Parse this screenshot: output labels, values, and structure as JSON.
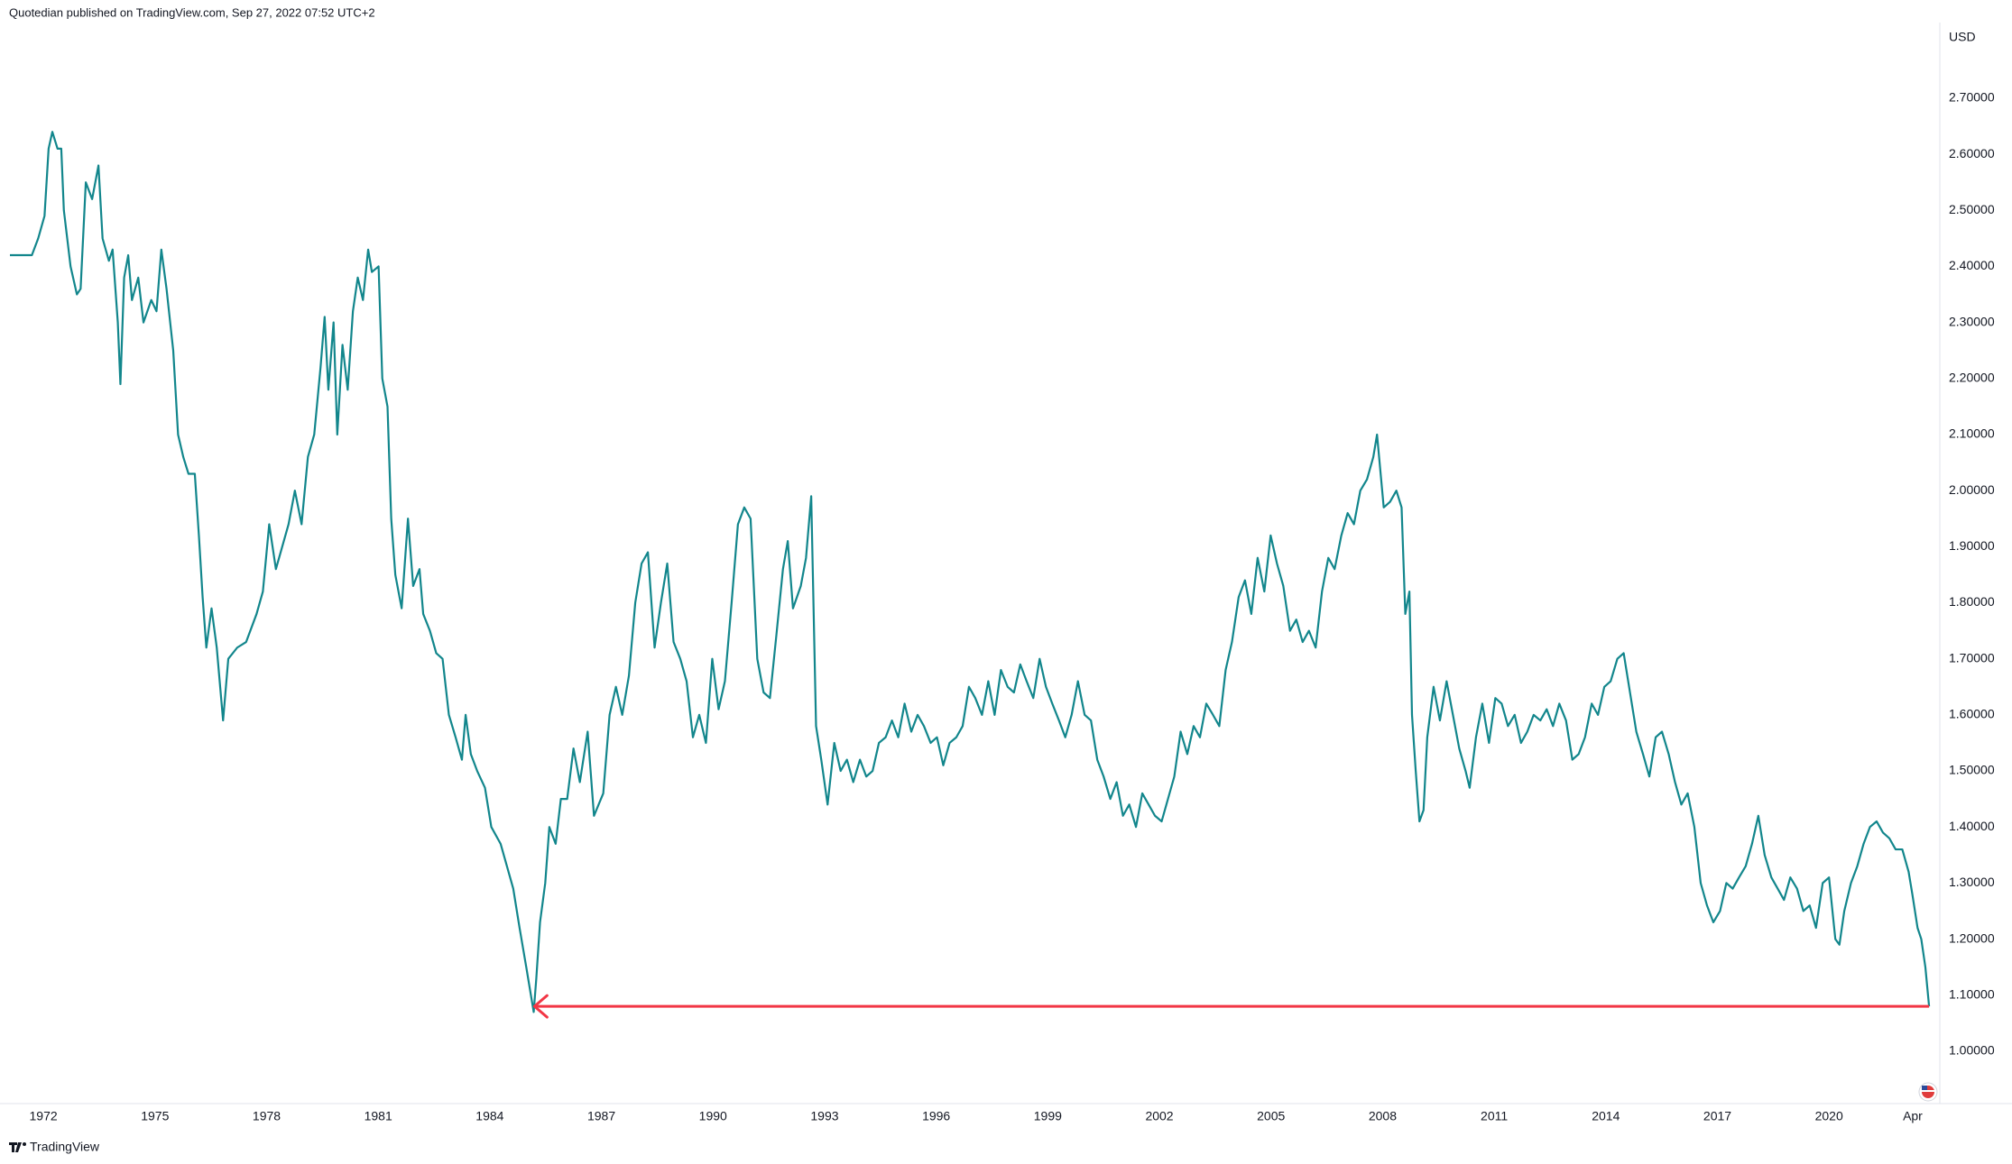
{
  "header": "Quotedian published on TradingView.com, Sep 27, 2022 07:52 UTC+2",
  "footer": "TradingView",
  "chart_data": {
    "type": "line",
    "y_axis_label": "USD",
    "color": "#12868c",
    "grid": false,
    "xlim": [
      1971.1,
      2022.93
    ],
    "ylim": [
      0.913,
      2.835
    ],
    "xticks": [
      1972,
      1975,
      1978,
      1981,
      1984,
      1987,
      1990,
      1993,
      1996,
      1999,
      2002,
      2005,
      2008,
      2011,
      2014,
      2017,
      2020,
      {
        "value": 2022.25,
        "label": "Apr"
      }
    ],
    "yticks": [
      {
        "value": 1.0,
        "label": "1.00000"
      },
      {
        "value": 1.1,
        "label": "1.10000"
      },
      {
        "value": 1.2,
        "label": "1.20000"
      },
      {
        "value": 1.3,
        "label": "1.30000"
      },
      {
        "value": 1.4,
        "label": "1.40000"
      },
      {
        "value": 1.5,
        "label": "1.50000"
      },
      {
        "value": 1.6,
        "label": "1.60000"
      },
      {
        "value": 1.7,
        "label": "1.70000"
      },
      {
        "value": 1.8,
        "label": "1.80000"
      },
      {
        "value": 1.9,
        "label": "1.90000"
      },
      {
        "value": 2.0,
        "label": "2.00000"
      },
      {
        "value": 2.1,
        "label": "2.10000"
      },
      {
        "value": 2.2,
        "label": "2.20000"
      },
      {
        "value": 2.3,
        "label": "2.30000"
      },
      {
        "value": 2.4,
        "label": "2.40000"
      },
      {
        "value": 2.5,
        "label": "2.50000"
      },
      {
        "value": 2.6,
        "label": "2.60000"
      },
      {
        "value": 2.7,
        "label": "2.70000"
      }
    ],
    "hline": {
      "value": 1.08,
      "color": "#f23645",
      "x": [
        1985.2,
        2022.69
      ]
    },
    "x": [
      1971.1,
      1971.69,
      1971.86,
      1972.03,
      1972.14,
      1972.24,
      1972.38,
      1972.48,
      1972.55,
      1972.73,
      1972.9,
      1973.0,
      1973.14,
      1973.31,
      1973.48,
      1973.59,
      1973.76,
      1973.86,
      1974.0,
      1974.07,
      1974.17,
      1974.28,
      1974.38,
      1974.55,
      1974.69,
      1974.9,
      1975.04,
      1975.17,
      1975.31,
      1975.49,
      1975.62,
      1975.76,
      1975.9,
      1976.07,
      1976.18,
      1976.28,
      1976.38,
      1976.52,
      1976.66,
      1976.83,
      1976.97,
      1977.21,
      1977.45,
      1977.73,
      1977.9,
      1978.07,
      1978.25,
      1978.42,
      1978.59,
      1978.76,
      1978.94,
      1979.11,
      1979.28,
      1979.45,
      1979.56,
      1979.66,
      1979.8,
      1979.9,
      1980.04,
      1980.18,
      1980.32,
      1980.45,
      1980.59,
      1980.73,
      1980.83,
      1981.01,
      1981.11,
      1981.25,
      1981.35,
      1981.46,
      1981.63,
      1981.8,
      1981.94,
      1982.11,
      1982.21,
      1982.39,
      1982.56,
      1982.73,
      1982.9,
      1983.08,
      1983.25,
      1983.35,
      1983.49,
      1983.66,
      1983.87,
      1984.04,
      1984.29,
      1984.46,
      1984.63,
      1984.8,
      1984.98,
      1985.08,
      1985.18,
      1985.25,
      1985.35,
      1985.49,
      1985.6,
      1985.77,
      1985.91,
      1986.08,
      1986.25,
      1986.42,
      1986.63,
      1986.8,
      1987.05,
      1987.22,
      1987.39,
      1987.56,
      1987.74,
      1987.91,
      1988.08,
      1988.25,
      1988.43,
      1988.6,
      1988.77,
      1988.94,
      1989.12,
      1989.29,
      1989.46,
      1989.63,
      1989.81,
      1989.98,
      1990.15,
      1990.32,
      1990.5,
      1990.67,
      1990.84,
      1991.01,
      1991.19,
      1991.36,
      1991.53,
      1991.7,
      1991.88,
      1992.01,
      1992.15,
      1992.36,
      1992.5,
      1992.64,
      1992.77,
      1992.91,
      1993.08,
      1993.26,
      1993.43,
      1993.6,
      1993.77,
      1993.95,
      1994.12,
      1994.29,
      1994.46,
      1994.64,
      1994.81,
      1994.98,
      1995.15,
      1995.33,
      1995.5,
      1995.67,
      1995.85,
      1996.02,
      1996.19,
      1996.36,
      1996.54,
      1996.71,
      1996.88,
      1997.05,
      1997.23,
      1997.4,
      1997.57,
      1997.74,
      1997.92,
      1998.09,
      1998.26,
      1998.43,
      1998.61,
      1998.78,
      1998.95,
      1999.12,
      1999.3,
      1999.47,
      1999.64,
      1999.81,
      1999.99,
      2000.16,
      2000.33,
      2000.5,
      2000.68,
      2000.85,
      2001.02,
      2001.19,
      2001.37,
      2001.54,
      2001.71,
      2001.88,
      2002.06,
      2002.23,
      2002.4,
      2002.57,
      2002.75,
      2002.92,
      2003.09,
      2003.26,
      2003.44,
      2003.61,
      2003.78,
      2003.95,
      2004.13,
      2004.3,
      2004.47,
      2004.64,
      2004.82,
      2004.99,
      2005.16,
      2005.33,
      2005.51,
      2005.68,
      2005.85,
      2006.02,
      2006.2,
      2006.37,
      2006.54,
      2006.71,
      2006.89,
      2007.06,
      2007.23,
      2007.4,
      2007.58,
      2007.75,
      2007.85,
      2008.03,
      2008.2,
      2008.37,
      2008.51,
      2008.61,
      2008.72,
      2008.79,
      2008.89,
      2008.99,
      2009.1,
      2009.2,
      2009.37,
      2009.54,
      2009.72,
      2009.89,
      2010.06,
      2010.23,
      2010.34,
      2010.51,
      2010.68,
      2010.86,
      2011.03,
      2011.2,
      2011.37,
      2011.55,
      2011.72,
      2011.89,
      2012.06,
      2012.24,
      2012.41,
      2012.58,
      2012.75,
      2012.93,
      2013.1,
      2013.27,
      2013.44,
      2013.62,
      2013.79,
      2013.96,
      2014.13,
      2014.31,
      2014.48,
      2014.65,
      2014.82,
      2015.0,
      2015.17,
      2015.34,
      2015.51,
      2015.69,
      2015.86,
      2016.03,
      2016.2,
      2016.38,
      2016.55,
      2016.72,
      2016.89,
      2017.07,
      2017.24,
      2017.41,
      2017.58,
      2017.76,
      2017.93,
      2018.1,
      2018.27,
      2018.45,
      2018.62,
      2018.79,
      2018.96,
      2019.14,
      2019.31,
      2019.48,
      2019.65,
      2019.83,
      2020.0,
      2020.17,
      2020.28,
      2020.41,
      2020.59,
      2020.76,
      2020.93,
      2021.1,
      2021.28,
      2021.45,
      2021.62,
      2021.79,
      2021.97,
      2022.14,
      2022.24,
      2022.38,
      2022.48,
      2022.59,
      2022.69
    ],
    "values": [
      2.42,
      2.42,
      2.45,
      2.49,
      2.61,
      2.64,
      2.61,
      2.61,
      2.5,
      2.4,
      2.35,
      2.36,
      2.55,
      2.52,
      2.58,
      2.45,
      2.41,
      2.43,
      2.3,
      2.19,
      2.38,
      2.42,
      2.34,
      2.38,
      2.3,
      2.34,
      2.32,
      2.43,
      2.36,
      2.25,
      2.1,
      2.06,
      2.03,
      2.03,
      1.92,
      1.81,
      1.72,
      1.79,
      1.72,
      1.59,
      1.7,
      1.72,
      1.73,
      1.78,
      1.82,
      1.94,
      1.86,
      1.9,
      1.94,
      2.0,
      1.94,
      2.06,
      2.1,
      2.22,
      2.31,
      2.18,
      2.3,
      2.1,
      2.26,
      2.18,
      2.32,
      2.38,
      2.34,
      2.43,
      2.39,
      2.4,
      2.2,
      2.15,
      1.95,
      1.85,
      1.79,
      1.95,
      1.83,
      1.86,
      1.78,
      1.75,
      1.71,
      1.7,
      1.6,
      1.56,
      1.52,
      1.6,
      1.53,
      1.5,
      1.47,
      1.4,
      1.37,
      1.33,
      1.29,
      1.22,
      1.15,
      1.11,
      1.07,
      1.13,
      1.23,
      1.3,
      1.4,
      1.37,
      1.45,
      1.45,
      1.54,
      1.48,
      1.57,
      1.42,
      1.46,
      1.6,
      1.65,
      1.6,
      1.67,
      1.8,
      1.87,
      1.89,
      1.72,
      1.8,
      1.87,
      1.73,
      1.7,
      1.66,
      1.56,
      1.6,
      1.55,
      1.7,
      1.61,
      1.66,
      1.8,
      1.94,
      1.97,
      1.95,
      1.7,
      1.64,
      1.63,
      1.74,
      1.86,
      1.91,
      1.79,
      1.83,
      1.88,
      1.99,
      1.58,
      1.52,
      1.44,
      1.55,
      1.5,
      1.52,
      1.48,
      1.52,
      1.49,
      1.5,
      1.55,
      1.56,
      1.59,
      1.56,
      1.62,
      1.57,
      1.6,
      1.58,
      1.55,
      1.56,
      1.51,
      1.55,
      1.56,
      1.58,
      1.65,
      1.63,
      1.6,
      1.66,
      1.6,
      1.68,
      1.65,
      1.64,
      1.69,
      1.66,
      1.63,
      1.7,
      1.65,
      1.62,
      1.59,
      1.56,
      1.6,
      1.66,
      1.6,
      1.59,
      1.52,
      1.49,
      1.45,
      1.48,
      1.42,
      1.44,
      1.4,
      1.46,
      1.44,
      1.42,
      1.41,
      1.45,
      1.49,
      1.57,
      1.53,
      1.58,
      1.56,
      1.62,
      1.6,
      1.58,
      1.68,
      1.73,
      1.81,
      1.84,
      1.78,
      1.88,
      1.82,
      1.92,
      1.87,
      1.83,
      1.75,
      1.77,
      1.73,
      1.75,
      1.72,
      1.82,
      1.88,
      1.86,
      1.92,
      1.96,
      1.94,
      2.0,
      2.02,
      2.06,
      2.1,
      1.97,
      1.98,
      2.0,
      1.97,
      1.78,
      1.82,
      1.6,
      1.5,
      1.41,
      1.43,
      1.56,
      1.65,
      1.59,
      1.66,
      1.6,
      1.54,
      1.5,
      1.47,
      1.56,
      1.62,
      1.55,
      1.63,
      1.62,
      1.58,
      1.6,
      1.55,
      1.57,
      1.6,
      1.59,
      1.61,
      1.58,
      1.62,
      1.59,
      1.52,
      1.53,
      1.56,
      1.62,
      1.6,
      1.65,
      1.66,
      1.7,
      1.71,
      1.64,
      1.57,
      1.53,
      1.49,
      1.56,
      1.57,
      1.53,
      1.48,
      1.44,
      1.46,
      1.4,
      1.3,
      1.26,
      1.23,
      1.25,
      1.3,
      1.29,
      1.31,
      1.33,
      1.37,
      1.42,
      1.35,
      1.31,
      1.29,
      1.27,
      1.31,
      1.29,
      1.25,
      1.26,
      1.22,
      1.3,
      1.31,
      1.2,
      1.19,
      1.25,
      1.3,
      1.33,
      1.37,
      1.4,
      1.41,
      1.39,
      1.38,
      1.36,
      1.36,
      1.32,
      1.28,
      1.22,
      1.2,
      1.15,
      1.08
    ]
  }
}
